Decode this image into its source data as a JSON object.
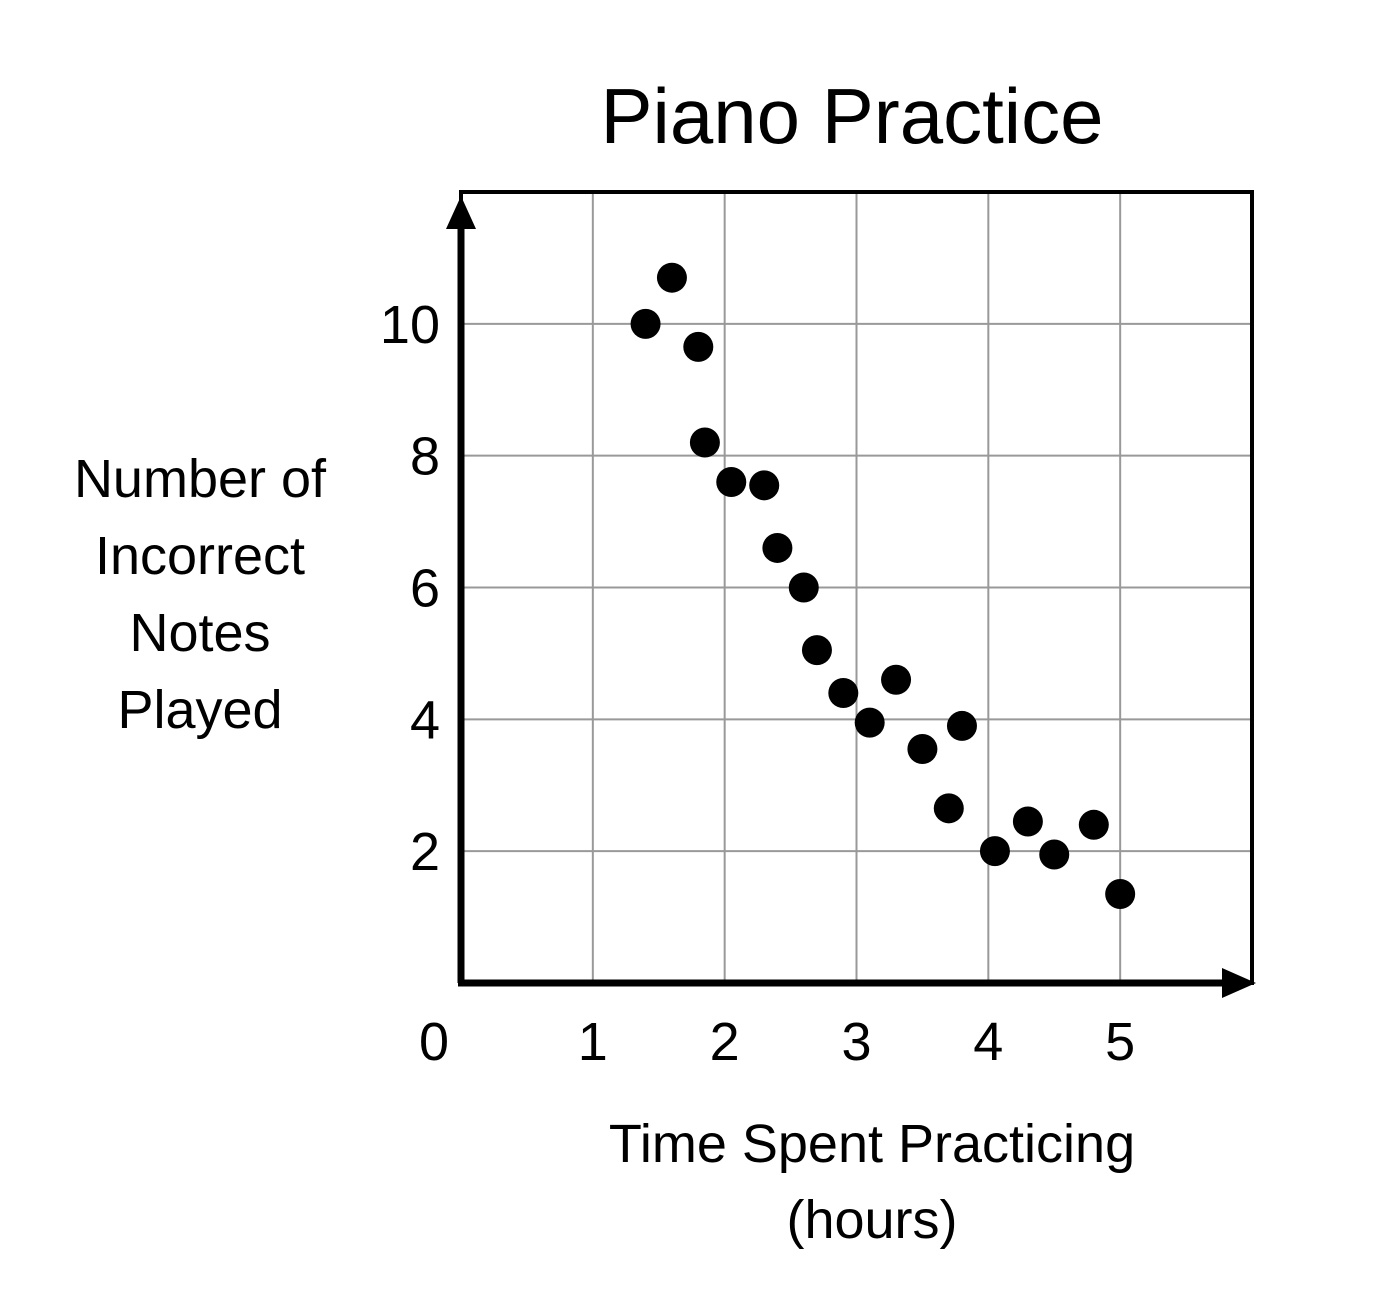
{
  "chart_data": {
    "type": "scatter",
    "title": "Piano Practice",
    "xlabel_lines": [
      "Time Spent Practicing",
      "(hours)"
    ],
    "ylabel_lines": [
      "Number of",
      "Incorrect",
      "Notes",
      "Played"
    ],
    "xlim": [
      0,
      6
    ],
    "ylim": [
      0,
      12
    ],
    "x_ticks": [
      {
        "value": 0,
        "label": "0"
      },
      {
        "value": 1,
        "label": "1"
      },
      {
        "value": 2,
        "label": "2"
      },
      {
        "value": 3,
        "label": "3"
      },
      {
        "value": 4,
        "label": "4"
      },
      {
        "value": 5,
        "label": "5"
      }
    ],
    "y_ticks": [
      {
        "value": 2,
        "label": "2"
      },
      {
        "value": 4,
        "label": "4"
      },
      {
        "value": 6,
        "label": "6"
      },
      {
        "value": 8,
        "label": "8"
      },
      {
        "value": 10,
        "label": "10"
      }
    ],
    "grid": true,
    "colors": {
      "point": "#000000",
      "axis": "#000000",
      "grid": "#999999",
      "frame": "#000000"
    },
    "points": [
      {
        "x": 1.4,
        "y": 10.0
      },
      {
        "x": 1.6,
        "y": 10.7
      },
      {
        "x": 1.8,
        "y": 9.65
      },
      {
        "x": 1.85,
        "y": 8.2
      },
      {
        "x": 2.05,
        "y": 7.6
      },
      {
        "x": 2.3,
        "y": 7.55
      },
      {
        "x": 2.4,
        "y": 6.6
      },
      {
        "x": 2.6,
        "y": 6.0
      },
      {
        "x": 2.7,
        "y": 5.05
      },
      {
        "x": 2.9,
        "y": 4.4
      },
      {
        "x": 3.1,
        "y": 3.95
      },
      {
        "x": 3.3,
        "y": 4.6
      },
      {
        "x": 3.5,
        "y": 3.55
      },
      {
        "x": 3.7,
        "y": 2.65
      },
      {
        "x": 3.8,
        "y": 3.9
      },
      {
        "x": 4.05,
        "y": 2.0
      },
      {
        "x": 4.3,
        "y": 2.45
      },
      {
        "x": 4.5,
        "y": 1.95
      },
      {
        "x": 4.8,
        "y": 2.4
      },
      {
        "x": 5.0,
        "y": 1.35
      }
    ]
  }
}
